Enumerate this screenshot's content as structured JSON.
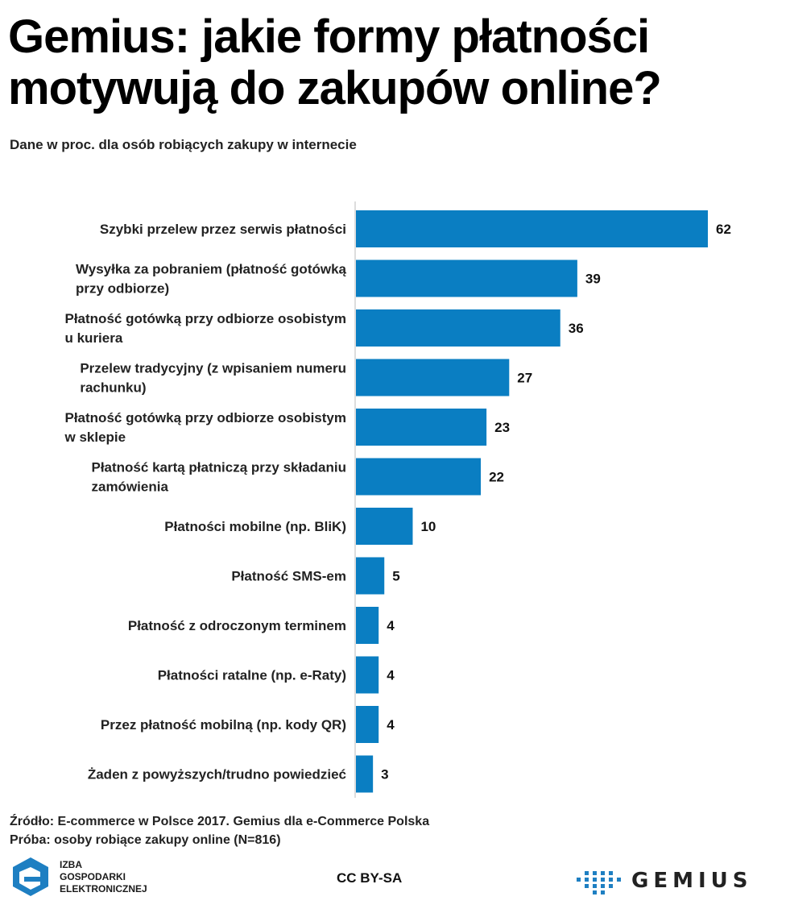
{
  "title_line1": "Gemius: jakie formy płatności",
  "title_line2": "motywują do zakupów online?",
  "subtitle": "Dane w proc. dla osób robiących zakupy w internecie",
  "source_line1": "Źródło: E-commerce w Polsce 2017. Gemius dla e-Commerce Polska",
  "source_line2": "Próba: osoby robiące zakupy online (N=816)",
  "logo_left": {
    "line1": "IZBA",
    "line2": "GOSPODARKI",
    "line3": "ELEKTRONICZNEJ"
  },
  "license": "CC BY-SA",
  "logo_right": "GEMIUS",
  "colors": {
    "bar": "#0a7ec2",
    "logo_blue": "#1e7fc2"
  },
  "chart_data": {
    "type": "bar",
    "orientation": "horizontal",
    "categories": [
      [
        "Szybki przelew przez serwis płatności"
      ],
      [
        "Wysyłka za pobraniem (płatność gotówką",
        "przy odbiorze)"
      ],
      [
        "Płatność gotówką przy odbiorze osobistym",
        "u kuriera"
      ],
      [
        "Przelew tradycyjny (z wpisaniem numeru",
        "rachunku)"
      ],
      [
        "Płatność gotówką przy odbiorze osobistym",
        "w sklepie"
      ],
      [
        "Płatność kartą płatniczą przy składaniu",
        "zamówienia"
      ],
      [
        "Płatności mobilne (np. BliK)"
      ],
      [
        "Płatność SMS-em"
      ],
      [
        "Płatność z odroczonym terminem"
      ],
      [
        "Płatności ratalne (np. e-Raty)"
      ],
      [
        "Przez płatność mobilną (np. kody QR)"
      ],
      [
        "Żaden z powyższych/trudno powiedzieć"
      ]
    ],
    "values": [
      62,
      39,
      36,
      27,
      23,
      22,
      10,
      5,
      4,
      4,
      4,
      3
    ],
    "xlim": [
      0,
      62
    ],
    "grid": false,
    "legend": "none"
  }
}
